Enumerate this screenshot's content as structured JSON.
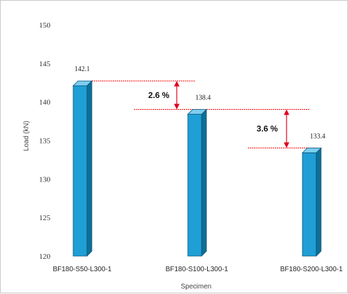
{
  "chart_data": {
    "type": "bar",
    "title": "",
    "xlabel": "Specimen",
    "ylabel": "Load (kN)",
    "ylim": [
      120,
      150
    ],
    "yticks": [
      120,
      125,
      130,
      135,
      140,
      145,
      150
    ],
    "categories": [
      "BF180-S50-L300-1",
      "BF180-S100-L300-1",
      "BF180-S200-L300-1"
    ],
    "values": [
      142.1,
      138.4,
      133.4
    ],
    "data_labels": [
      "142.1",
      "138.4",
      "133.4"
    ],
    "bar_color": "#1f9fd6",
    "bar_side_color": "#0f6f96",
    "bar_top_color": "#7ccdf0",
    "reference_line_color": "#ff0000",
    "arrow_color": "#e0001b",
    "annotations": [
      {
        "text": "2.6 %",
        "from_value": 142.1,
        "to_value": 138.4
      },
      {
        "text": "3.6 %",
        "from_value": 138.4,
        "to_value": 133.4
      }
    ],
    "grid": false
  }
}
